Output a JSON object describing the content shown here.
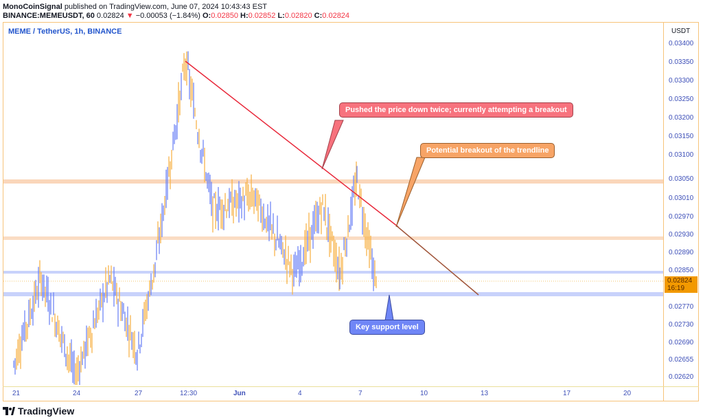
{
  "header": {
    "author": "MonoCoinSignal",
    "published": "published on TradingView.com, June 07, 2024 10:43:43 EST",
    "symbol": "BINANCE:MEMEUSDT, 60",
    "last": "0.02824",
    "change_arrow": "▼",
    "change": "−0.00053 (−1.84%)",
    "o_label": "O:",
    "o": "0.02850",
    "h_label": "H:",
    "h": "0.02852",
    "l_label": "L:",
    "l": "0.02820",
    "c_label": "C:",
    "c": "0.02824"
  },
  "pane_title": "MEME / TetherUS, 1h, BINANCE",
  "price_axis": {
    "currency": "USDT",
    "current_price": "0.02824",
    "countdown": "16:19"
  },
  "annotations": {
    "red_callout": "Pushed the price down twice; currently attempting a breakout",
    "orange_callout": "Potential breakout of the trendline",
    "blue_callout": "Key support level"
  },
  "brand": "TradingView",
  "colors": {
    "up": "#6f86f6",
    "down": "#f7b34a",
    "trendline": "#e8283a",
    "resistance_band": "#f9cfae",
    "support_band": "#c8d2fb",
    "frame": "#f7c37a"
  },
  "chart_data": {
    "type": "candlestick",
    "title": "MEME / TetherUS, 1h, BINANCE",
    "xlabel": "",
    "ylabel": "USDT",
    "x_ticks": [
      "21",
      "24",
      "27",
      "12:30",
      "Jun",
      "4",
      "7",
      "10",
      "13",
      "17",
      "20"
    ],
    "y_ticks": [
      "0.03400",
      "0.03350",
      "0.03300",
      "0.03250",
      "0.03200",
      "0.03150",
      "0.03100",
      "0.03050",
      "0.03010",
      "0.02970",
      "0.02930",
      "0.02890",
      "0.02850",
      "0.02770",
      "0.02730",
      "0.02690",
      "0.02655",
      "0.02620"
    ],
    "ylim": [
      0.026,
      0.0342
    ],
    "last_price": 0.02824,
    "ohlc_last": {
      "open": 0.0285,
      "high": 0.02852,
      "low": 0.0282,
      "close": 0.02824
    },
    "approx_path": [
      {
        "x": "21",
        "price": 0.0265
      },
      {
        "x": "22",
        "price": 0.0285
      },
      {
        "x": "24",
        "price": 0.0262
      },
      {
        "x": "25",
        "price": 0.0285
      },
      {
        "x": "26",
        "price": 0.0268
      },
      {
        "x": "27",
        "price": 0.029
      },
      {
        "x": "28",
        "price": 0.0336
      },
      {
        "x": "29",
        "price": 0.0301
      },
      {
        "x": "30",
        "price": 0.0304
      },
      {
        "x": "Jun 1",
        "price": 0.0286
      },
      {
        "x": "2",
        "price": 0.0302
      },
      {
        "x": "3",
        "price": 0.0286
      },
      {
        "x": "5",
        "price": 0.0308
      },
      {
        "x": "6",
        "price": 0.029
      },
      {
        "x": "7",
        "price": 0.0282
      }
    ],
    "levels": {
      "resistance_1": 0.0305,
      "resistance_2": 0.0293,
      "support_upper": 0.0285,
      "support_key": 0.0279
    },
    "trendline": {
      "from": {
        "x": "28",
        "price": 0.0336
      },
      "to": {
        "x": "13",
        "price": 0.0279
      }
    },
    "grid": false,
    "legend": "none"
  }
}
